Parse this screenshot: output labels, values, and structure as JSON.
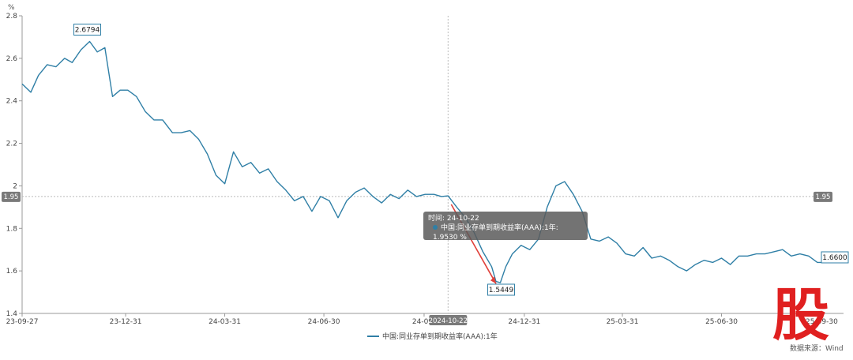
{
  "chart_data": {
    "type": "line",
    "ylabel": "%",
    "ylim": [
      1.4,
      2.8
    ],
    "yticks": [
      "1.4",
      "1.6",
      "1.8",
      "2",
      "2.2",
      "2.4",
      "2.6",
      "2.8"
    ],
    "xticks": [
      "23-09-27",
      "23-12-31",
      "24-03-31",
      "24-06-30",
      "24-09",
      "24-12-31",
      "25-03-31",
      "25-06-30",
      "25-09-30"
    ],
    "grid": false,
    "legend": "bottom-center",
    "series": [
      {
        "name": "中国:同业存单到期收益率(AAA):1年",
        "color": "#2f7fa6",
        "x": [
          "2023-09-27",
          "2023-10-05",
          "2023-10-12",
          "2023-10-20",
          "2023-10-28",
          "2023-11-05",
          "2023-11-12",
          "2023-11-20",
          "2023-11-28",
          "2023-12-05",
          "2023-12-12",
          "2023-12-19",
          "2023-12-26",
          "2024-01-02",
          "2024-01-10",
          "2024-01-18",
          "2024-01-26",
          "2024-02-03",
          "2024-02-12",
          "2024-02-20",
          "2024-02-28",
          "2024-03-07",
          "2024-03-15",
          "2024-03-23",
          "2024-03-31",
          "2024-04-08",
          "2024-04-16",
          "2024-04-24",
          "2024-05-02",
          "2024-05-10",
          "2024-05-18",
          "2024-05-26",
          "2024-06-03",
          "2024-06-11",
          "2024-06-19",
          "2024-06-27",
          "2024-07-05",
          "2024-07-13",
          "2024-07-21",
          "2024-07-29",
          "2024-08-06",
          "2024-08-14",
          "2024-08-22",
          "2024-08-30",
          "2024-09-07",
          "2024-09-15",
          "2024-09-23",
          "2024-10-01",
          "2024-10-09",
          "2024-10-16",
          "2024-10-22",
          "2024-10-30",
          "2024-11-07",
          "2024-11-15",
          "2024-11-23",
          "2024-12-01",
          "2024-12-05",
          "2024-12-09",
          "2024-12-14",
          "2024-12-20",
          "2024-12-28",
          "2025-01-05",
          "2025-01-13",
          "2025-01-21",
          "2025-01-29",
          "2025-02-06",
          "2025-02-14",
          "2025-02-22",
          "2025-03-02",
          "2025-03-10",
          "2025-03-18",
          "2025-03-26",
          "2025-04-03",
          "2025-04-11",
          "2025-04-19",
          "2025-04-27",
          "2025-05-05",
          "2025-05-13",
          "2025-05-21",
          "2025-05-29",
          "2025-06-06",
          "2025-06-14",
          "2025-06-22",
          "2025-06-30",
          "2025-07-08",
          "2025-07-16",
          "2025-07-24",
          "2025-08-01",
          "2025-08-09",
          "2025-08-17",
          "2025-08-25",
          "2025-09-02",
          "2025-09-10",
          "2025-09-18",
          "2025-09-26",
          "2025-10-04",
          "2025-10-12",
          "2025-10-20"
        ],
        "values": [
          2.48,
          2.44,
          2.52,
          2.57,
          2.56,
          2.6,
          2.58,
          2.64,
          2.6794,
          2.63,
          2.65,
          2.42,
          2.45,
          2.45,
          2.42,
          2.35,
          2.31,
          2.31,
          2.25,
          2.25,
          2.26,
          2.22,
          2.15,
          2.05,
          2.01,
          2.16,
          2.09,
          2.11,
          2.06,
          2.08,
          2.02,
          1.98,
          1.93,
          1.95,
          1.88,
          1.95,
          1.93,
          1.85,
          1.93,
          1.97,
          1.99,
          1.95,
          1.92,
          1.96,
          1.94,
          1.98,
          1.95,
          1.96,
          1.96,
          1.95,
          1.953,
          1.9,
          1.85,
          1.78,
          1.69,
          1.62,
          1.55,
          1.5449,
          1.62,
          1.68,
          1.72,
          1.7,
          1.75,
          1.9,
          2.0,
          2.02,
          1.96,
          1.88,
          1.75,
          1.74,
          1.76,
          1.73,
          1.68,
          1.67,
          1.71,
          1.66,
          1.67,
          1.65,
          1.62,
          1.6,
          1.63,
          1.65,
          1.64,
          1.66,
          1.63,
          1.67,
          1.67,
          1.68,
          1.68,
          1.69,
          1.7,
          1.67,
          1.68,
          1.67,
          1.64,
          1.64,
          1.65,
          1.66
        ]
      }
    ],
    "annotations": [
      {
        "label": "2.6794",
        "x": "2023-11-28",
        "y": 2.6794
      },
      {
        "label": "1.5449",
        "x": "2024-12-09",
        "y": 1.5449
      },
      {
        "label": "1.6600",
        "x": "2025-10-20",
        "y": 1.66
      }
    ],
    "crosshair": {
      "x_label": "2024-10-22",
      "y_label": "1.95",
      "y": 1.95
    },
    "tooltip": {
      "line1": "时间: 24-10-22",
      "line2": "中国:同业存单到期收益率(AAA):1年: 1.9530  %"
    }
  },
  "watermark": {
    "logo_text": "股",
    "source": "数据来源：Wind",
    "color": "#e02020"
  }
}
